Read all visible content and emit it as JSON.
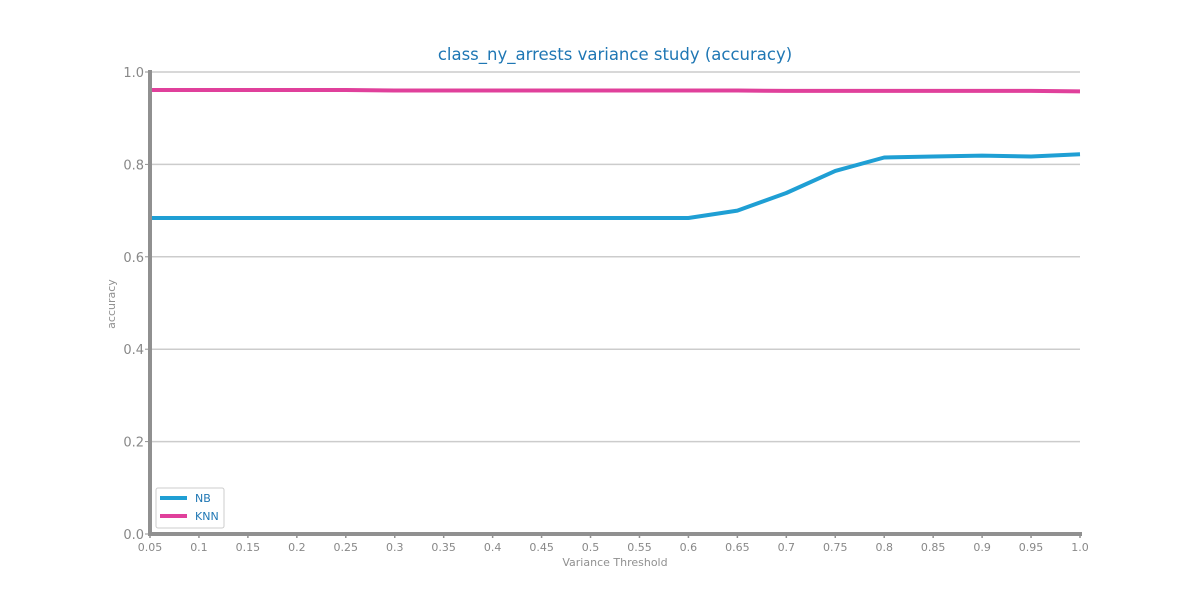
{
  "chart_data": {
    "type": "line",
    "title": "class_ny_arrests variance study (accuracy)",
    "xlabel": "Variance Threshold",
    "ylabel": "accuracy",
    "x": [
      0.05,
      0.1,
      0.15,
      0.2,
      0.25,
      0.3,
      0.35,
      0.4,
      0.45,
      0.5,
      0.55,
      0.6,
      0.65,
      0.7,
      0.75,
      0.8,
      0.85,
      0.9,
      0.95,
      1.0
    ],
    "xtick_labels": [
      "0.05",
      "0.1",
      "0.15",
      "0.2",
      "0.25",
      "0.3",
      "0.35",
      "0.4",
      "0.45",
      "0.5",
      "0.55",
      "0.6",
      "0.65",
      "0.7",
      "0.75",
      "0.8",
      "0.85",
      "0.9",
      "0.95",
      "1.0"
    ],
    "yticks": [
      0.0,
      0.2,
      0.4,
      0.6,
      0.8,
      1.0
    ],
    "ytick_labels": [
      "0.0",
      "0.2",
      "0.4",
      "0.6",
      "0.8",
      "1.0"
    ],
    "xlim": [
      0.05,
      1.0
    ],
    "ylim": [
      0.0,
      1.0
    ],
    "grid": "horizontal",
    "legend_position": "lower-left",
    "series": [
      {
        "name": "NB",
        "color": "#1f9fd4",
        "values": [
          0.684,
          0.684,
          0.684,
          0.684,
          0.684,
          0.684,
          0.684,
          0.684,
          0.684,
          0.684,
          0.684,
          0.684,
          0.7,
          0.738,
          0.786,
          0.815,
          0.817,
          0.819,
          0.817,
          0.822
        ]
      },
      {
        "name": "KNN",
        "color": "#e0409b",
        "values": [
          0.961,
          0.961,
          0.961,
          0.961,
          0.961,
          0.96,
          0.96,
          0.96,
          0.96,
          0.96,
          0.96,
          0.96,
          0.96,
          0.959,
          0.959,
          0.959,
          0.959,
          0.959,
          0.959,
          0.958
        ]
      }
    ],
    "colors": {
      "title": "#1f77b4",
      "axis": "#909090",
      "grid": "#cccccc",
      "tick_text": "#888888",
      "legend_text": "#1f77b4"
    }
  }
}
